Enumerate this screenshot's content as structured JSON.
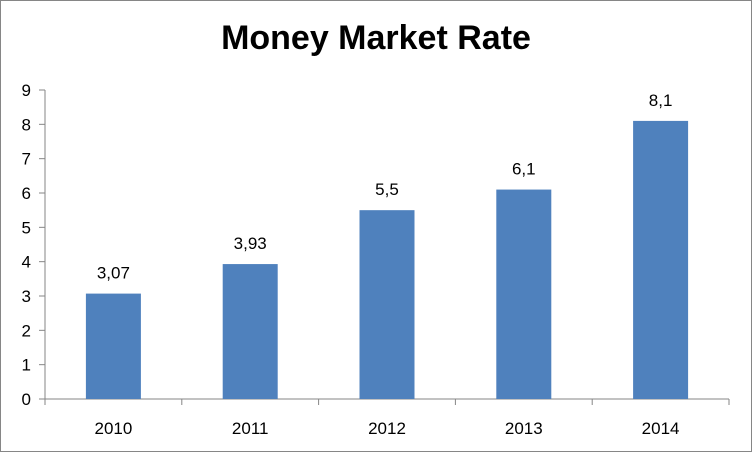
{
  "chart_data": {
    "type": "bar",
    "title": "Money Market Rate",
    "categories": [
      "2010",
      "2011",
      "2012",
      "2013",
      "2014"
    ],
    "values": [
      3.07,
      3.93,
      5.5,
      6.1,
      8.1
    ],
    "data_labels": [
      "3,07",
      "3,93",
      "5,5",
      "6,1",
      "8,1"
    ],
    "yticks": [
      "0",
      "1",
      "2",
      "3",
      "4",
      "5",
      "6",
      "7",
      "8",
      "9"
    ],
    "ylim": [
      0,
      9
    ],
    "xlabel": "",
    "ylabel": "",
    "grid": false,
    "legend": "none",
    "bar_color": "#4F81BD",
    "axis_color": "#868686"
  }
}
